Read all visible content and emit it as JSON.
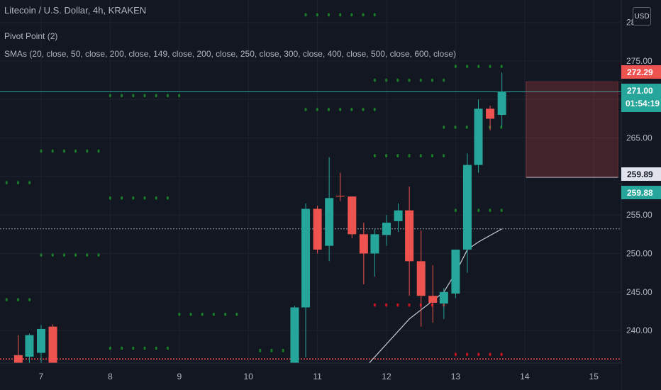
{
  "header": {
    "symbol_line": "Litecoin / U.S. Dollar, 4h, KRAKEN",
    "indicator_1": "Pivot Point (2)",
    "indicator_2": "SMAs (20, close, 50, close, 200, close, 149, close, 200, close, 250, close, 300, close, 400, close, 500, close, 600, close)"
  },
  "toolbar": {
    "currency_label": "USD"
  },
  "price_scale": {
    "ticks": [
      "275.00",
      "265.00",
      "255.00",
      "250.00",
      "245.00",
      "240.00"
    ],
    "top_partial": "28",
    "labels": {
      "stop": "272.29",
      "last": "271.00",
      "countdown": "01:54:19",
      "target_gray": "259.89",
      "target_green": "259.88"
    }
  },
  "time_scale": {
    "ticks": [
      "7",
      "8",
      "9",
      "10",
      "11",
      "12",
      "13",
      "14",
      "15"
    ]
  },
  "colors": {
    "background": "#131722",
    "bull": "#26a69a",
    "bear": "#ef5350",
    "pivot_green": "#1b7a28",
    "pivot_red": "#c8141e",
    "sma": "#c9ccd4"
  },
  "chart_data": {
    "type": "candlestick",
    "symbol": "Litecoin / U.S. Dollar",
    "interval": "4h",
    "exchange": "KRAKEN",
    "ylim": [
      235.5,
      281.5
    ],
    "x_ticks": [
      "7",
      "8",
      "9",
      "10",
      "11",
      "12",
      "13",
      "14",
      "15"
    ],
    "last_price": 271.0,
    "candles": [
      {
        "x": 6.67,
        "o": 236.8,
        "h": 239.4,
        "l": 234.0,
        "c": 235.2
      },
      {
        "x": 6.83,
        "o": 236.6,
        "h": 239.6,
        "l": 234.5,
        "c": 239.4
      },
      {
        "x": 7.0,
        "o": 237.1,
        "h": 240.7,
        "l": 235.0,
        "c": 240.2
      },
      {
        "x": 7.17,
        "o": 240.5,
        "h": 240.8,
        "l": 234.0,
        "c": 235.0
      },
      {
        "x": 10.67,
        "o": 235.5,
        "h": 243.2,
        "l": 235.3,
        "c": 243.0
      },
      {
        "x": 10.83,
        "o": 243.0,
        "h": 256.5,
        "l": 236.5,
        "c": 255.8
      },
      {
        "x": 11.0,
        "o": 255.8,
        "h": 256.2,
        "l": 250.0,
        "c": 250.5
      },
      {
        "x": 11.17,
        "o": 251.0,
        "h": 262.5,
        "l": 249.0,
        "c": 257.2
      },
      {
        "x": 11.33,
        "o": 257.5,
        "h": 260.5,
        "l": 256.8,
        "c": 257.4
      },
      {
        "x": 11.5,
        "o": 257.4,
        "h": 257.4,
        "l": 252.0,
        "c": 252.5
      },
      {
        "x": 11.67,
        "o": 252.5,
        "h": 254.0,
        "l": 246.0,
        "c": 250.0
      },
      {
        "x": 11.83,
        "o": 250.0,
        "h": 253.2,
        "l": 247.0,
        "c": 252.5
      },
      {
        "x": 12.0,
        "o": 252.4,
        "h": 255.0,
        "l": 251.0,
        "c": 254.0
      },
      {
        "x": 12.17,
        "o": 254.2,
        "h": 256.5,
        "l": 252.8,
        "c": 255.6
      },
      {
        "x": 12.33,
        "o": 255.6,
        "h": 258.7,
        "l": 244.5,
        "c": 249.0
      },
      {
        "x": 12.5,
        "o": 249.0,
        "h": 253.0,
        "l": 240.5,
        "c": 244.5
      },
      {
        "x": 12.67,
        "o": 244.5,
        "h": 248.5,
        "l": 241.0,
        "c": 243.6
      },
      {
        "x": 12.83,
        "o": 243.5,
        "h": 245.5,
        "l": 241.5,
        "c": 245.0
      },
      {
        "x": 13.0,
        "o": 244.8,
        "h": 250.5,
        "l": 244.2,
        "c": 250.5
      },
      {
        "x": 13.17,
        "o": 250.5,
        "h": 263.0,
        "l": 247.5,
        "c": 261.5
      },
      {
        "x": 13.33,
        "o": 261.5,
        "h": 270.0,
        "l": 260.5,
        "c": 268.8
      },
      {
        "x": 13.5,
        "o": 268.8,
        "h": 269.2,
        "l": 266.0,
        "c": 267.5
      },
      {
        "x": 13.67,
        "o": 268.0,
        "h": 273.5,
        "l": 266.5,
        "c": 271.0
      }
    ],
    "sma_line": [
      {
        "x": 11.67,
        "y": 235.0
      },
      {
        "x": 12.33,
        "y": 241.5
      },
      {
        "x": 12.83,
        "y": 245.0
      },
      {
        "x": 13.0,
        "y": 247.5
      },
      {
        "x": 13.17,
        "y": 250.5
      },
      {
        "x": 13.33,
        "y": 251.5
      },
      {
        "x": 13.67,
        "y": 253.2
      }
    ],
    "pivot_levels": [
      {
        "color": "green",
        "y": 281.0,
        "x0": 10.83,
        "x1": 11.83
      },
      {
        "color": "green",
        "y": 274.3,
        "x0": 13.0,
        "x1": 13.67
      },
      {
        "color": "green",
        "y": 272.5,
        "x0": 11.83,
        "x1": 12.83
      },
      {
        "color": "green",
        "y": 270.5,
        "x0": 8.0,
        "x1": 9.0
      },
      {
        "color": "green",
        "y": 268.7,
        "x0": 10.83,
        "x1": 11.83
      },
      {
        "color": "green",
        "y": 266.4,
        "x0": 12.83,
        "x1": 13.67
      },
      {
        "color": "green",
        "y": 263.3,
        "x0": 7.0,
        "x1": 7.83
      },
      {
        "color": "green",
        "y": 262.7,
        "x0": 11.83,
        "x1": 12.83
      },
      {
        "color": "green",
        "y": 259.2,
        "x0": 6.5,
        "x1": 6.83
      },
      {
        "color": "green",
        "y": 257.2,
        "x0": 8.0,
        "x1": 8.83
      },
      {
        "color": "green",
        "y": 255.6,
        "x0": 13.0,
        "x1": 13.67
      },
      {
        "color": "green",
        "y": 249.8,
        "x0": 7.0,
        "x1": 7.83
      },
      {
        "color": "green",
        "y": 244.0,
        "x0": 6.5,
        "x1": 6.83
      },
      {
        "color": "green",
        "y": 242.1,
        "x0": 9.0,
        "x1": 9.83
      },
      {
        "color": "green",
        "y": 237.7,
        "x0": 8.0,
        "x1": 8.83
      },
      {
        "color": "green",
        "y": 237.4,
        "x0": 10.17,
        "x1": 10.5
      },
      {
        "color": "red",
        "y": 243.3,
        "x0": 11.83,
        "x1": 12.83
      },
      {
        "color": "red",
        "y": 236.9,
        "x0": 13.0,
        "x1": 13.67
      }
    ],
    "horizontal_lines": [
      {
        "style": "solid",
        "color": "#26a69a",
        "y": 271.0
      },
      {
        "style": "dotted",
        "color": "#9598a1",
        "y": 253.2
      },
      {
        "style": "dotted",
        "color": "#ef5350",
        "y": 236.3
      }
    ],
    "position_box": {
      "x0": 14.0,
      "x1": 15.33,
      "top": 272.29,
      "bottom": 259.89
    }
  }
}
